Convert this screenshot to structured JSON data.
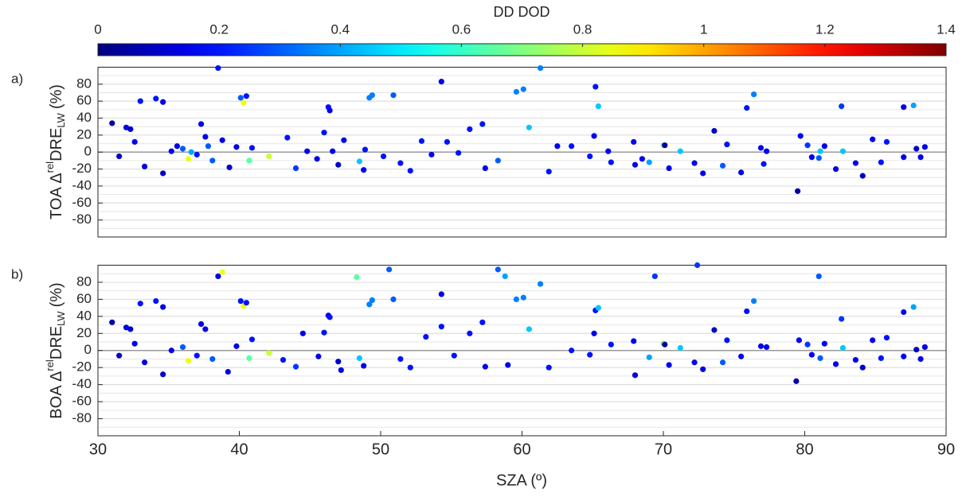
{
  "colorbar": {
    "label": "DD DOD",
    "colormap": "jet",
    "lim": [
      0,
      1.4
    ],
    "ticks": [
      0,
      0.2,
      0.4,
      0.6,
      0.8,
      1,
      1.2,
      1.4
    ]
  },
  "chart_data": [
    {
      "type": "scatter",
      "panel_label": "a)",
      "ylabel": {
        "prefix": "TOA Δ",
        "sup": "rel",
        "main": "DRE",
        "sub": "LW",
        "suffix": "(%)"
      },
      "xlim": [
        30,
        90
      ],
      "ylim": [
        -100,
        100
      ],
      "yticks": [
        -80,
        -60,
        -40,
        -20,
        0,
        20,
        40,
        60,
        80
      ],
      "grid": true,
      "zero_line": true,
      "x": [
        31.0,
        31.5,
        32.0,
        32.3,
        32.6,
        33.0,
        33.3,
        34.1,
        34.6,
        34.6,
        35.2,
        35.6,
        36.0,
        36.4,
        36.6,
        37.0,
        37.3,
        37.6,
        37.8,
        38.1,
        38.5,
        38.8,
        39.3,
        39.8,
        40.1,
        40.3,
        40.5,
        40.7,
        40.9,
        42.1,
        43.4,
        44.0,
        44.8,
        45.5,
        46.0,
        46.3,
        46.4,
        46.6,
        47.0,
        47.4,
        48.5,
        48.8,
        48.9,
        49.2,
        49.4,
        50.2,
        50.9,
        51.4,
        52.1,
        52.9,
        53.6,
        54.3,
        54.7,
        55.5,
        56.3,
        57.2,
        57.4,
        58.3,
        59.6,
        60.1,
        60.5,
        61.3,
        61.9,
        62.5,
        63.5,
        64.8,
        65.1,
        65.2,
        65.4,
        66.1,
        66.3,
        67.9,
        68.0,
        68.5,
        69.0,
        70.0,
        70.1,
        70.4,
        71.2,
        72.2,
        72.8,
        73.6,
        74.2,
        74.5,
        75.5,
        75.9,
        76.4,
        76.9,
        77.1,
        77.3,
        79.5,
        79.7,
        80.2,
        80.5,
        81.0,
        81.1,
        81.4,
        82.2,
        82.6,
        82.7,
        83.6,
        84.1,
        84.8,
        85.4,
        85.8,
        87.0,
        87.0,
        87.7,
        87.9,
        88.2,
        88.5
      ],
      "y": [
        34,
        -5,
        29,
        27,
        12,
        60,
        -17,
        63,
        59,
        -25,
        1,
        7,
        4,
        -8,
        0,
        -3,
        33,
        18,
        7,
        -10,
        99,
        14,
        -18,
        6,
        64,
        58,
        66,
        -10,
        5,
        -5,
        17,
        -19,
        1,
        -8,
        23,
        53,
        49,
        1,
        -15,
        14,
        -11,
        -21,
        3,
        64,
        67,
        -5,
        67,
        -13,
        -22,
        13,
        -3,
        83,
        12,
        -1,
        27,
        33,
        -19,
        -10,
        71,
        74,
        29,
        99,
        -23,
        7,
        7,
        -5,
        19,
        77,
        54,
        1,
        -12,
        12,
        -15,
        -8,
        -12,
        8,
        8,
        -19,
        1,
        -13,
        -25,
        25,
        -16,
        9,
        -24,
        52,
        68,
        5,
        -14,
        1,
        -46,
        19,
        8,
        -6,
        -7,
        1,
        7,
        -20,
        54,
        1,
        -13,
        -28,
        15,
        -12,
        12,
        53,
        -6,
        55,
        4,
        -6,
        6
      ],
      "color_values": [
        0.05,
        0.1,
        0.15,
        0.1,
        0.15,
        0.2,
        0.15,
        0.2,
        0.15,
        0.1,
        0.15,
        0.15,
        0.3,
        0.85,
        0.4,
        0.2,
        0.15,
        0.15,
        0.3,
        0.3,
        0.2,
        0.15,
        0.1,
        0.15,
        0.3,
        0.85,
        0.2,
        0.65,
        0.2,
        0.8,
        0.2,
        0.25,
        0.15,
        0.15,
        0.2,
        0.2,
        0.15,
        0.15,
        0.1,
        0.15,
        0.45,
        0.15,
        0.2,
        0.35,
        0.35,
        0.2,
        0.3,
        0.2,
        0.2,
        0.2,
        0.15,
        0.15,
        0.2,
        0.2,
        0.2,
        0.2,
        0.15,
        0.3,
        0.35,
        0.35,
        0.45,
        0.35,
        0.2,
        0.15,
        0.2,
        0.2,
        0.15,
        0.2,
        0.45,
        0.15,
        0.2,
        0.15,
        0.15,
        0.15,
        0.4,
        0.7,
        0.05,
        0.15,
        0.45,
        0.15,
        0.15,
        0.1,
        0.3,
        0.2,
        0.15,
        0.2,
        0.35,
        0.15,
        0.2,
        0.15,
        0.05,
        0.15,
        0.25,
        0.15,
        0.3,
        0.45,
        0.15,
        0.15,
        0.25,
        0.45,
        0.15,
        0.1,
        0.15,
        0.2,
        0.2,
        0.15,
        0.15,
        0.4,
        0.1,
        0.15,
        0.15
      ]
    },
    {
      "type": "scatter",
      "panel_label": "b)",
      "ylabel": {
        "prefix": "BOA Δ",
        "sup": "rel",
        "main": "DRE",
        "sub": "LW",
        "suffix": "(%)"
      },
      "xlabel": "SZA (º)",
      "xlim": [
        30,
        90
      ],
      "xticks": [
        30,
        40,
        50,
        60,
        70,
        80,
        90
      ],
      "ylim": [
        -100,
        100
      ],
      "yticks": [
        -80,
        -60,
        -40,
        -20,
        0,
        20,
        40,
        60,
        80
      ],
      "grid": true,
      "zero_line": true,
      "x": [
        31.0,
        31.5,
        32.0,
        32.3,
        32.6,
        33.0,
        33.3,
        34.1,
        34.6,
        34.6,
        35.2,
        36.0,
        36.4,
        37.0,
        37.3,
        37.6,
        38.1,
        38.5,
        38.8,
        39.2,
        39.8,
        40.1,
        40.3,
        40.5,
        40.7,
        40.9,
        42.1,
        43.1,
        44.0,
        44.5,
        45.6,
        46.0,
        46.3,
        46.4,
        47.0,
        47.2,
        48.3,
        48.5,
        48.8,
        49.2,
        49.4,
        50.6,
        50.9,
        51.4,
        52.1,
        53.2,
        54.3,
        54.3,
        55.2,
        56.3,
        57.2,
        57.4,
        58.3,
        58.8,
        59.0,
        59.6,
        60.1,
        60.5,
        61.3,
        61.9,
        63.5,
        64.8,
        65.2,
        65.4,
        65.1,
        66.3,
        67.9,
        68.0,
        69.0,
        69.4,
        70.0,
        70.1,
        70.4,
        71.2,
        72.2,
        72.4,
        72.8,
        73.6,
        74.2,
        74.5,
        75.5,
        75.9,
        76.4,
        76.9,
        77.3,
        79.4,
        79.6,
        80.2,
        80.5,
        81.0,
        81.1,
        81.4,
        82.2,
        82.6,
        82.7,
        83.6,
        84.1,
        84.8,
        85.4,
        85.8,
        87.0,
        87.0,
        87.7,
        87.9,
        88.2,
        88.5
      ],
      "y": [
        33,
        -6,
        27,
        25,
        8,
        55,
        -14,
        58,
        51,
        -28,
        0,
        4,
        -12,
        -6,
        31,
        25,
        -10,
        87,
        92,
        -25,
        5,
        58,
        52,
        56,
        -9,
        13,
        -3,
        -11,
        -19,
        20,
        -7,
        21,
        41,
        39,
        -13,
        -23,
        86,
        -9,
        -18,
        54,
        59,
        95,
        60,
        -10,
        -20,
        16,
        66,
        28,
        -6,
        20,
        33,
        -19,
        95,
        87,
        -17,
        60,
        62,
        25,
        78,
        -20,
        0,
        -5,
        47,
        50,
        20,
        7,
        11,
        -29,
        -8,
        87,
        8,
        7,
        -17,
        3,
        -14,
        100,
        -22,
        24,
        -14,
        12,
        -7,
        46,
        58,
        5,
        4,
        -36,
        12,
        7,
        -5,
        87,
        -9,
        8,
        -16,
        37,
        3,
        -11,
        -20,
        12,
        -9,
        15,
        45,
        -7,
        51,
        1,
        -10,
        4
      ],
      "color_values": [
        0.05,
        0.1,
        0.15,
        0.1,
        0.15,
        0.2,
        0.15,
        0.2,
        0.15,
        0.1,
        0.15,
        0.3,
        0.85,
        0.2,
        0.15,
        0.15,
        0.3,
        0.15,
        0.85,
        0.15,
        0.15,
        0.2,
        0.85,
        0.2,
        0.65,
        0.2,
        0.8,
        0.2,
        0.25,
        0.15,
        0.15,
        0.2,
        0.15,
        0.2,
        0.1,
        0.15,
        0.65,
        0.45,
        0.15,
        0.35,
        0.35,
        0.3,
        0.3,
        0.2,
        0.2,
        0.2,
        0.15,
        0.2,
        0.2,
        0.2,
        0.2,
        0.15,
        0.3,
        0.4,
        0.15,
        0.35,
        0.35,
        0.45,
        0.35,
        0.2,
        0.2,
        0.2,
        0.2,
        0.45,
        0.15,
        0.2,
        0.15,
        0.15,
        0.4,
        0.25,
        0.7,
        0.05,
        0.15,
        0.45,
        0.15,
        0.25,
        0.15,
        0.1,
        0.3,
        0.2,
        0.15,
        0.2,
        0.35,
        0.15,
        0.15,
        0.05,
        0.15,
        0.25,
        0.15,
        0.3,
        0.3,
        0.15,
        0.15,
        0.25,
        0.45,
        0.15,
        0.1,
        0.15,
        0.2,
        0.2,
        0.15,
        0.15,
        0.4,
        0.1,
        0.15,
        0.15
      ]
    }
  ]
}
